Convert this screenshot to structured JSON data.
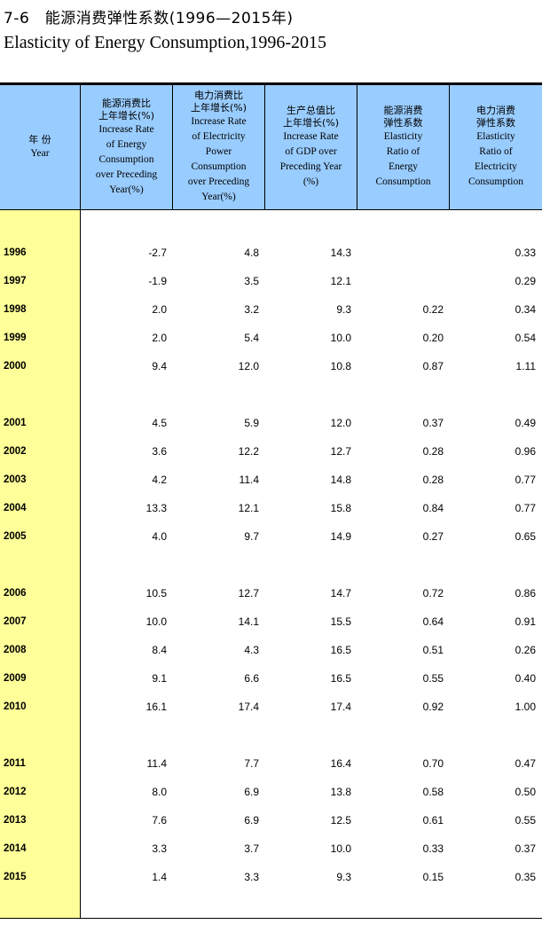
{
  "title": {
    "cn": "7-6　能源消费弹性系数(1996—2015年)",
    "en": "Elasticity of Energy Consumption,1996-2015"
  },
  "headers": [
    {
      "cn": "年 份",
      "en": "Year"
    },
    {
      "cn": "能源消费比\n上年增长(%)",
      "en": "Increase Rate\nof Energy\nConsumption\nover Preceding\nYear(%)"
    },
    {
      "cn": "电力消费比\n上年增长(%)",
      "en": "Increase Rate\nof Electricity\nPower\nConsumption\nover Preceding\nYear(%)"
    },
    {
      "cn": "生产总值比\n上年增长(%)",
      "en": "Increase Rate\nof GDP over\nPreceding Year\n(%)"
    },
    {
      "cn": "能源消费\n弹性系数",
      "en": "Elasticity\nRatio of\nEnergy\nConsumption"
    },
    {
      "cn": "电力消费\n弹性系数",
      "en": "Elasticity\nRatio of\nElectricity\nConsumption"
    }
  ],
  "rows": [
    {
      "year": "1996",
      "energy": "-2.7",
      "power": "4.8",
      "gdp": "14.3",
      "e_ratio": "",
      "p_ratio": "0.33"
    },
    {
      "year": "1997",
      "energy": "-1.9",
      "power": "3.5",
      "gdp": "12.1",
      "e_ratio": "",
      "p_ratio": "0.29"
    },
    {
      "year": "1998",
      "energy": "2.0",
      "power": "3.2",
      "gdp": "9.3",
      "e_ratio": "0.22",
      "p_ratio": "0.34"
    },
    {
      "year": "1999",
      "energy": "2.0",
      "power": "5.4",
      "gdp": "10.0",
      "e_ratio": "0.20",
      "p_ratio": "0.54"
    },
    {
      "year": "2000",
      "energy": "9.4",
      "power": "12.0",
      "gdp": "10.8",
      "e_ratio": "0.87",
      "p_ratio": "1.11"
    },
    {
      "year": "2001",
      "energy": "4.5",
      "power": "5.9",
      "gdp": "12.0",
      "e_ratio": "0.37",
      "p_ratio": "0.49"
    },
    {
      "year": "2002",
      "energy": "3.6",
      "power": "12.2",
      "gdp": "12.7",
      "e_ratio": "0.28",
      "p_ratio": "0.96"
    },
    {
      "year": "2003",
      "energy": "4.2",
      "power": "11.4",
      "gdp": "14.8",
      "e_ratio": "0.28",
      "p_ratio": "0.77"
    },
    {
      "year": "2004",
      "energy": "13.3",
      "power": "12.1",
      "gdp": "15.8",
      "e_ratio": "0.84",
      "p_ratio": "0.77"
    },
    {
      "year": "2005",
      "energy": "4.0",
      "power": "9.7",
      "gdp": "14.9",
      "e_ratio": "0.27",
      "p_ratio": "0.65"
    },
    {
      "year": "2006",
      "energy": "10.5",
      "power": "12.7",
      "gdp": "14.7",
      "e_ratio": "0.72",
      "p_ratio": "0.86"
    },
    {
      "year": "2007",
      "energy": "10.0",
      "power": "14.1",
      "gdp": "15.5",
      "e_ratio": "0.64",
      "p_ratio": "0.91"
    },
    {
      "year": "2008",
      "energy": "8.4",
      "power": "4.3",
      "gdp": "16.5",
      "e_ratio": "0.51",
      "p_ratio": "0.26"
    },
    {
      "year": "2009",
      "energy": "9.1",
      "power": "6.6",
      "gdp": "16.5",
      "e_ratio": "0.55",
      "p_ratio": "0.40"
    },
    {
      "year": "2010",
      "energy": "16.1",
      "power": "17.4",
      "gdp": "17.4",
      "e_ratio": "0.92",
      "p_ratio": "1.00"
    },
    {
      "year": "2011",
      "energy": "11.4",
      "power": "7.7",
      "gdp": "16.4",
      "e_ratio": "0.70",
      "p_ratio": "0.47"
    },
    {
      "year": "2012",
      "energy": "8.0",
      "power": "6.9",
      "gdp": "13.8",
      "e_ratio": "0.58",
      "p_ratio": "0.50"
    },
    {
      "year": "2013",
      "energy": "7.6",
      "power": "6.9",
      "gdp": "12.5",
      "e_ratio": "0.61",
      "p_ratio": "0.55"
    },
    {
      "year": "2014",
      "energy": "3.3",
      "power": "3.7",
      "gdp": "10.0",
      "e_ratio": "0.33",
      "p_ratio": "0.37"
    },
    {
      "year": "2015",
      "energy": "1.4",
      "power": "3.3",
      "gdp": "9.3",
      "e_ratio": "0.15",
      "p_ratio": "0.35"
    }
  ]
}
